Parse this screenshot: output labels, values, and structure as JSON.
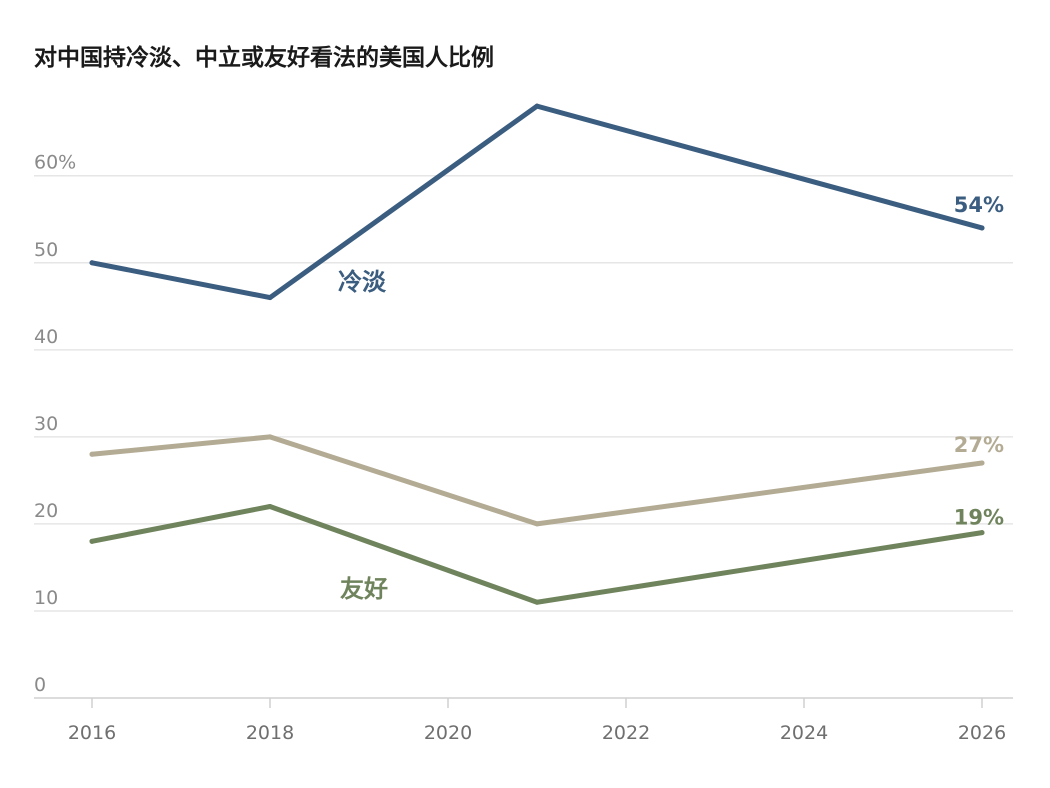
{
  "chart_data": {
    "type": "line",
    "title": "对中国持冷淡、中立或友好看法的美国人比例",
    "x_ticks": [
      "2016",
      "2018",
      "2020",
      "2022",
      "2024",
      "2026"
    ],
    "y_ticks": [
      "0",
      "10",
      "20",
      "30",
      "40",
      "50",
      "60%"
    ],
    "y_tick_values": [
      0,
      10,
      20,
      30,
      40,
      50,
      60
    ],
    "xlim": [
      2016,
      2026
    ],
    "ylim": [
      0,
      70
    ],
    "grid": true,
    "series": [
      {
        "key": "cold",
        "name": "冷淡",
        "color": "#3b5d80",
        "end_label": "54%",
        "points": [
          {
            "x": 2016,
            "y": 50
          },
          {
            "x": 2018,
            "y": 46
          },
          {
            "x": 2021,
            "y": 68
          },
          {
            "x": 2026,
            "y": 54
          }
        ]
      },
      {
        "key": "neutral",
        "name": "",
        "color": "#b3ab93",
        "end_label": "27%",
        "points": [
          {
            "x": 2016,
            "y": 28
          },
          {
            "x": 2018,
            "y": 30
          },
          {
            "x": 2021,
            "y": 20
          },
          {
            "x": 2026,
            "y": 27
          }
        ]
      },
      {
        "key": "warm",
        "name": "友好",
        "color": "#6f845c",
        "end_label": "19%",
        "points": [
          {
            "x": 2016,
            "y": 18
          },
          {
            "x": 2018,
            "y": 22
          },
          {
            "x": 2021,
            "y": 11
          },
          {
            "x": 2026,
            "y": 19
          }
        ]
      }
    ]
  }
}
